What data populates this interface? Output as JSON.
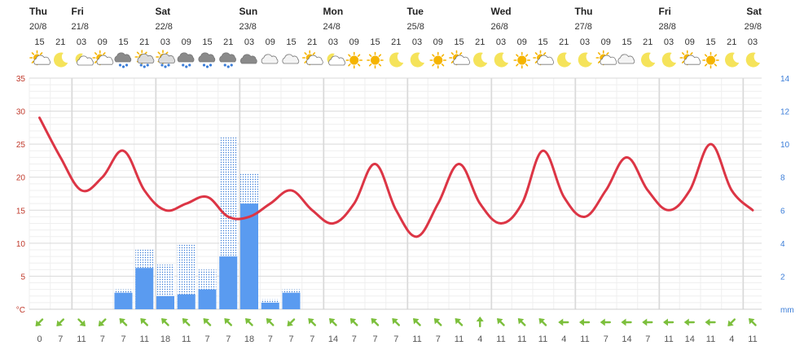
{
  "colors": {
    "temperature": "#dc3545",
    "precip": "#5a9bf0",
    "precip_upper": "#3b7dd8",
    "wind": "#7cbf3c",
    "grid_major": "#d9d9d9",
    "grid_minor": "#efefef",
    "left_axis": "#c0392b",
    "right_axis": "#3b7dd8",
    "sun": "#f5b400",
    "moon": "#f5e35a",
    "cloud": "#b8b8b8",
    "dark_cloud": "#8a8a8a"
  },
  "chart_data": {
    "type": "line",
    "days": [
      {
        "name": "Thu",
        "date": "20/8",
        "col": 0
      },
      {
        "name": "Fri",
        "date": "21/8",
        "col": 2
      },
      {
        "name": "Sat",
        "date": "22/8",
        "col": 6
      },
      {
        "name": "Sun",
        "date": "23/8",
        "col": 10
      },
      {
        "name": "Mon",
        "date": "24/8",
        "col": 14
      },
      {
        "name": "Tue",
        "date": "25/8",
        "col": 18
      },
      {
        "name": "Wed",
        "date": "26/8",
        "col": 22
      },
      {
        "name": "Thu",
        "date": "27/8",
        "col": 26
      },
      {
        "name": "Fri",
        "date": "28/8",
        "col": 30
      },
      {
        "name": "Sat",
        "date": "29/8",
        "col": 34
      }
    ],
    "hours": [
      "15",
      "21",
      "03",
      "09",
      "15",
      "21",
      "03",
      "09",
      "15",
      "21",
      "03",
      "09",
      "15",
      "21",
      "03",
      "09",
      "15",
      "21",
      "03",
      "09",
      "15",
      "21",
      "03",
      "09",
      "15",
      "21",
      "03",
      "09",
      "15",
      "21",
      "03",
      "09",
      "15",
      "21",
      "03"
    ],
    "icons": [
      "sun-cloud",
      "moon",
      "moon-cloud",
      "sun-cloud",
      "rain-cloud",
      "rain-sun",
      "rain-sun",
      "rain-cloud",
      "rain-cloud",
      "rain-cloud",
      "dark-cloud",
      "cloud",
      "cloud",
      "sun-cloud",
      "moon-cloud",
      "sun",
      "sun",
      "moon",
      "moon",
      "sun",
      "sun-cloud",
      "moon",
      "moon",
      "sun",
      "sun-cloud",
      "moon",
      "moon",
      "sun-cloud",
      "cloud",
      "moon",
      "moon",
      "sun-cloud",
      "sun",
      "moon",
      "moon"
    ],
    "temperature": [
      29,
      23,
      18,
      20,
      24,
      18,
      15,
      16,
      17,
      14,
      14,
      16,
      18,
      15,
      13,
      16,
      22,
      15,
      11,
      16,
      22,
      16,
      13,
      16,
      24,
      17,
      14,
      18,
      23,
      18,
      15,
      18,
      25,
      18,
      15
    ],
    "precip_bars": [
      {
        "col": 4,
        "value": 1.0,
        "upper": 1.2
      },
      {
        "col": 5,
        "value": 2.5,
        "upper": 3.6
      },
      {
        "col": 6,
        "value": 0.8,
        "upper": 2.7
      },
      {
        "col": 7,
        "value": 0.9,
        "upper": 3.9
      },
      {
        "col": 8,
        "value": 1.2,
        "upper": 2.4
      },
      {
        "col": 9,
        "value": 3.2,
        "upper": 10.4
      },
      {
        "col": 10,
        "value": 6.4,
        "upper": 8.2
      },
      {
        "col": 11,
        "value": 0.4,
        "upper": 0.6
      },
      {
        "col": 12,
        "value": 1.0,
        "upper": 1.2
      }
    ],
    "wind_speeds": [
      "0",
      "7",
      "11",
      "7",
      "7",
      "11",
      "18",
      "11",
      "7",
      "7",
      "18",
      "7",
      "7",
      "7",
      "14",
      "7",
      "7",
      "7",
      "11",
      "7",
      "11",
      "4",
      "11",
      "11",
      "11",
      "4",
      "11",
      "7",
      "14",
      "7",
      "11",
      "14",
      "11",
      "4",
      "11"
    ],
    "wind_dirs": [
      225,
      225,
      135,
      225,
      315,
      315,
      315,
      315,
      315,
      315,
      315,
      315,
      225,
      315,
      315,
      315,
      315,
      315,
      315,
      315,
      315,
      0,
      315,
      315,
      315,
      270,
      270,
      270,
      270,
      270,
      270,
      270,
      270,
      225,
      315
    ],
    "y_left": {
      "min": 0,
      "max": 35,
      "ticks": [
        35,
        30,
        25,
        20,
        15,
        10,
        5
      ],
      "unit": "°C"
    },
    "y_right": {
      "min": 0,
      "max": 14,
      "ticks": [
        14,
        12,
        10,
        8,
        6,
        4,
        2
      ],
      "unit": "mm"
    }
  }
}
